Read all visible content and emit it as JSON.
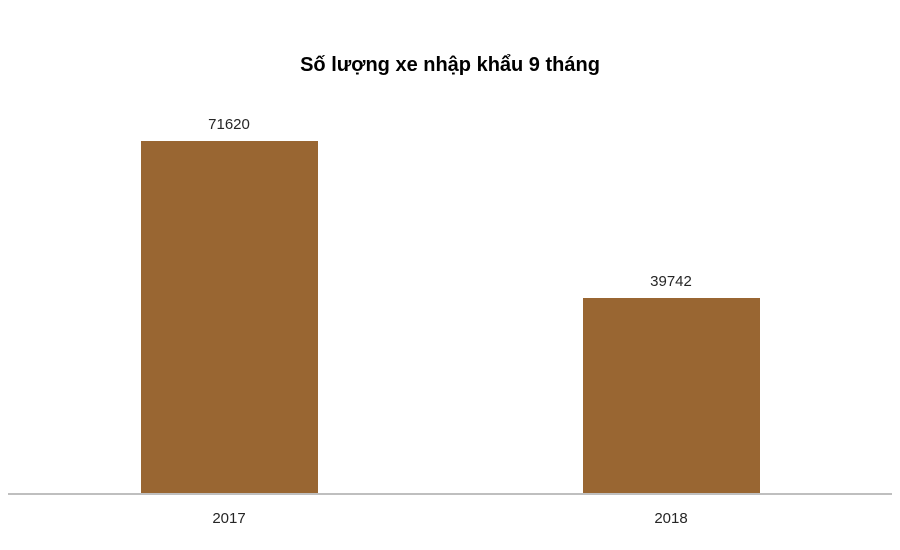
{
  "chart_data": {
    "type": "bar",
    "title": "Số lượng xe nhập khẩu 9 tháng",
    "categories": [
      "2017",
      "2018"
    ],
    "values": [
      71620,
      39742
    ],
    "data_labels": [
      "71620",
      "39742"
    ],
    "xlabel": "",
    "ylabel": "",
    "ylim": [
      0,
      71620
    ],
    "grid": false,
    "legend_position": "none",
    "bar_color": "#996632",
    "data_label_color": "#262626",
    "tick_label_color": "#262626",
    "title_color": "#000000",
    "axis_line_color": "#BFBFBF"
  }
}
